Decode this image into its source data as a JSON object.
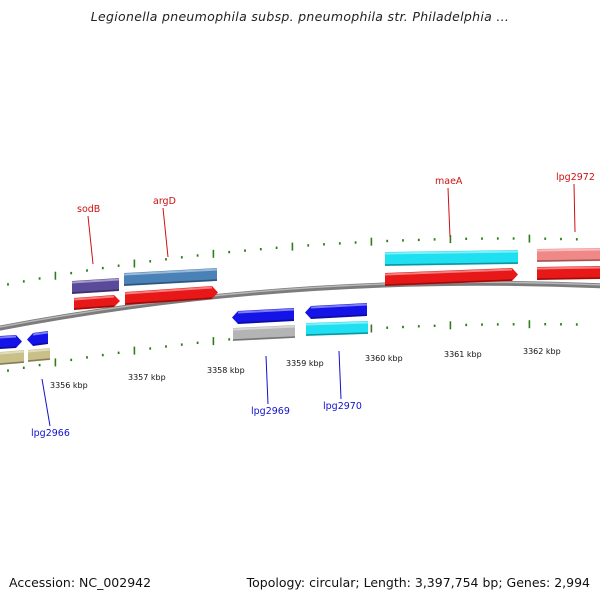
{
  "title": "Legionella pneumophila subsp. pneumophila str. Philadelphia ...",
  "footer": {
    "accession": "Accession: NC_002942",
    "summary": "Topology: circular; Length: 3,397,754 bp; Genes: 2,994"
  },
  "colors": {
    "backbone": "#8a8a8a",
    "tick": "#2e7d1a",
    "label_upper": "#cc1111",
    "label_lower": "#1111cc"
  },
  "kbp_labels": [
    "3356 kbp",
    "3357 kbp",
    "3358 kbp",
    "3359 kbp",
    "3360 kbp",
    "3361 kbp",
    "3362 kbp"
  ],
  "gene_labels": [
    {
      "id": "sodB",
      "text": "sodB",
      "strand": "upper"
    },
    {
      "id": "argD",
      "text": "argD",
      "strand": "upper"
    },
    {
      "id": "maeA",
      "text": "maeA",
      "strand": "upper"
    },
    {
      "id": "lpg2972",
      "text": "lpg2972",
      "strand": "upper"
    },
    {
      "id": "lpg2966",
      "text": "lpg2966",
      "strand": "lower"
    },
    {
      "id": "lpg2969",
      "text": "lpg2969",
      "strand": "lower"
    },
    {
      "id": "lpg2970",
      "text": "lpg2970",
      "strand": "lower"
    }
  ],
  "feature_colors": {
    "purple": "#5a4a9a",
    "steelblue": "#4a82b8",
    "red": "#e81818",
    "cyan": "#1ee0f0",
    "pink": "#f08888",
    "blue": "#1414e8",
    "gray": "#b4b4b4",
    "olive": "#c8c088"
  }
}
